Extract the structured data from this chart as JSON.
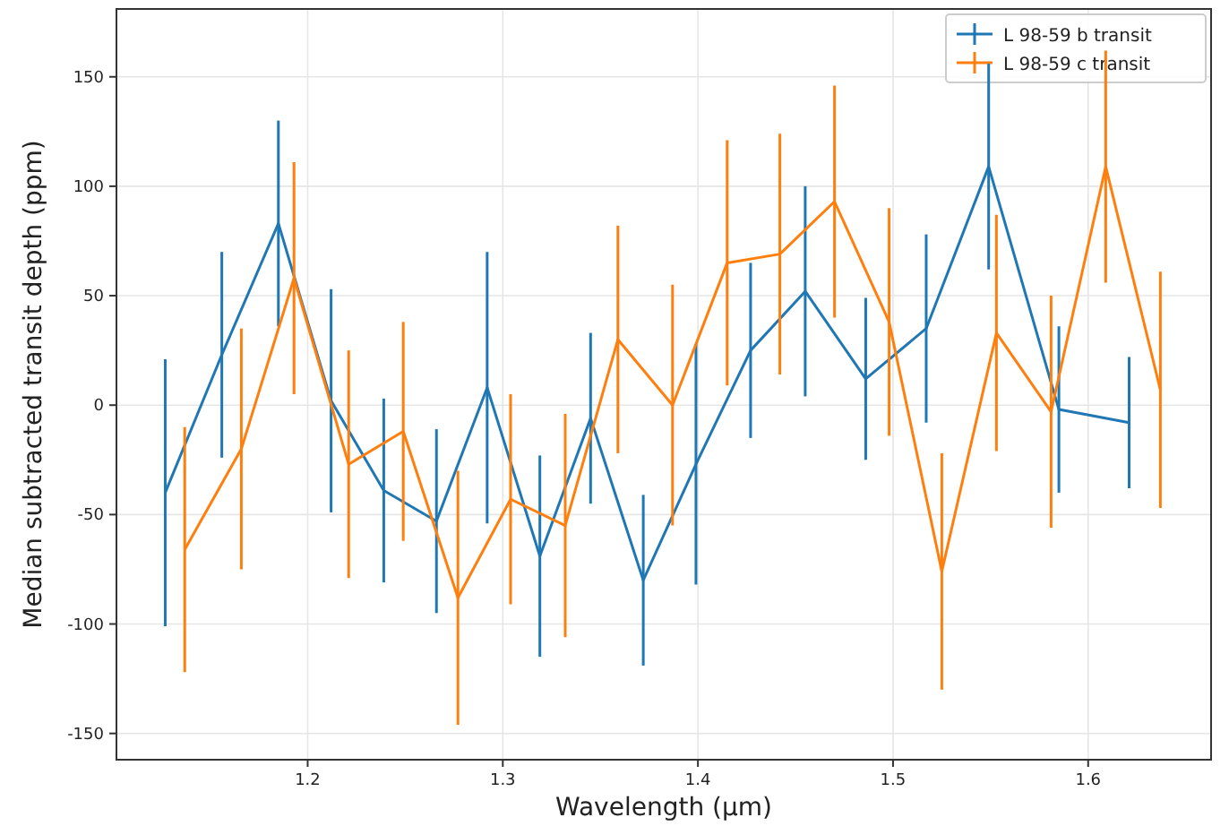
{
  "chart_data": {
    "type": "line",
    "xlabel": "Wavelength (μm)",
    "ylabel": "Median subtracted transit depth (ppm)",
    "xlim": [
      1.102,
      1.663
    ],
    "ylim": [
      -162,
      181
    ],
    "xticks": [
      1.2,
      1.3,
      1.4,
      1.5,
      1.6
    ],
    "yticks": [
      -150,
      -100,
      -50,
      0,
      50,
      100,
      150
    ],
    "grid": true,
    "legend": "top right",
    "marker": "none",
    "line_style": "solid",
    "series": [
      {
        "name": "L 98-59 b transit",
        "color": "#1f77b4",
        "x": [
          1.127,
          1.156,
          1.185,
          1.212,
          1.239,
          1.266,
          1.292,
          1.319,
          1.345,
          1.372,
          1.399,
          1.427,
          1.455,
          1.486,
          1.517,
          1.549,
          1.585,
          1.621
        ],
        "values": [
          -40,
          23,
          83,
          2,
          -39,
          -53,
          8,
          -69,
          -6,
          -80,
          -27,
          25,
          52,
          12,
          35,
          109,
          -2,
          -8
        ],
        "errors": [
          61,
          47,
          47,
          51,
          42,
          42,
          62,
          46,
          39,
          39,
          55,
          40,
          48,
          37,
          43,
          47,
          38,
          30
        ]
      },
      {
        "name": "L 98-59 c transit",
        "color": "#ff7f0e",
        "x": [
          1.137,
          1.166,
          1.193,
          1.221,
          1.249,
          1.277,
          1.304,
          1.332,
          1.359,
          1.387,
          1.415,
          1.442,
          1.47,
          1.498,
          1.525,
          1.553,
          1.581,
          1.609,
          1.637
        ],
        "values": [
          -66,
          -20,
          58,
          -27,
          -12,
          -88,
          -43,
          -55,
          30,
          0,
          65,
          69,
          93,
          38,
          -76,
          33,
          -3,
          109,
          7
        ],
        "errors": [
          56,
          55,
          53,
          52,
          50,
          58,
          48,
          51,
          52,
          55,
          56,
          55,
          53,
          52,
          54,
          54,
          53,
          53,
          54
        ]
      }
    ]
  }
}
